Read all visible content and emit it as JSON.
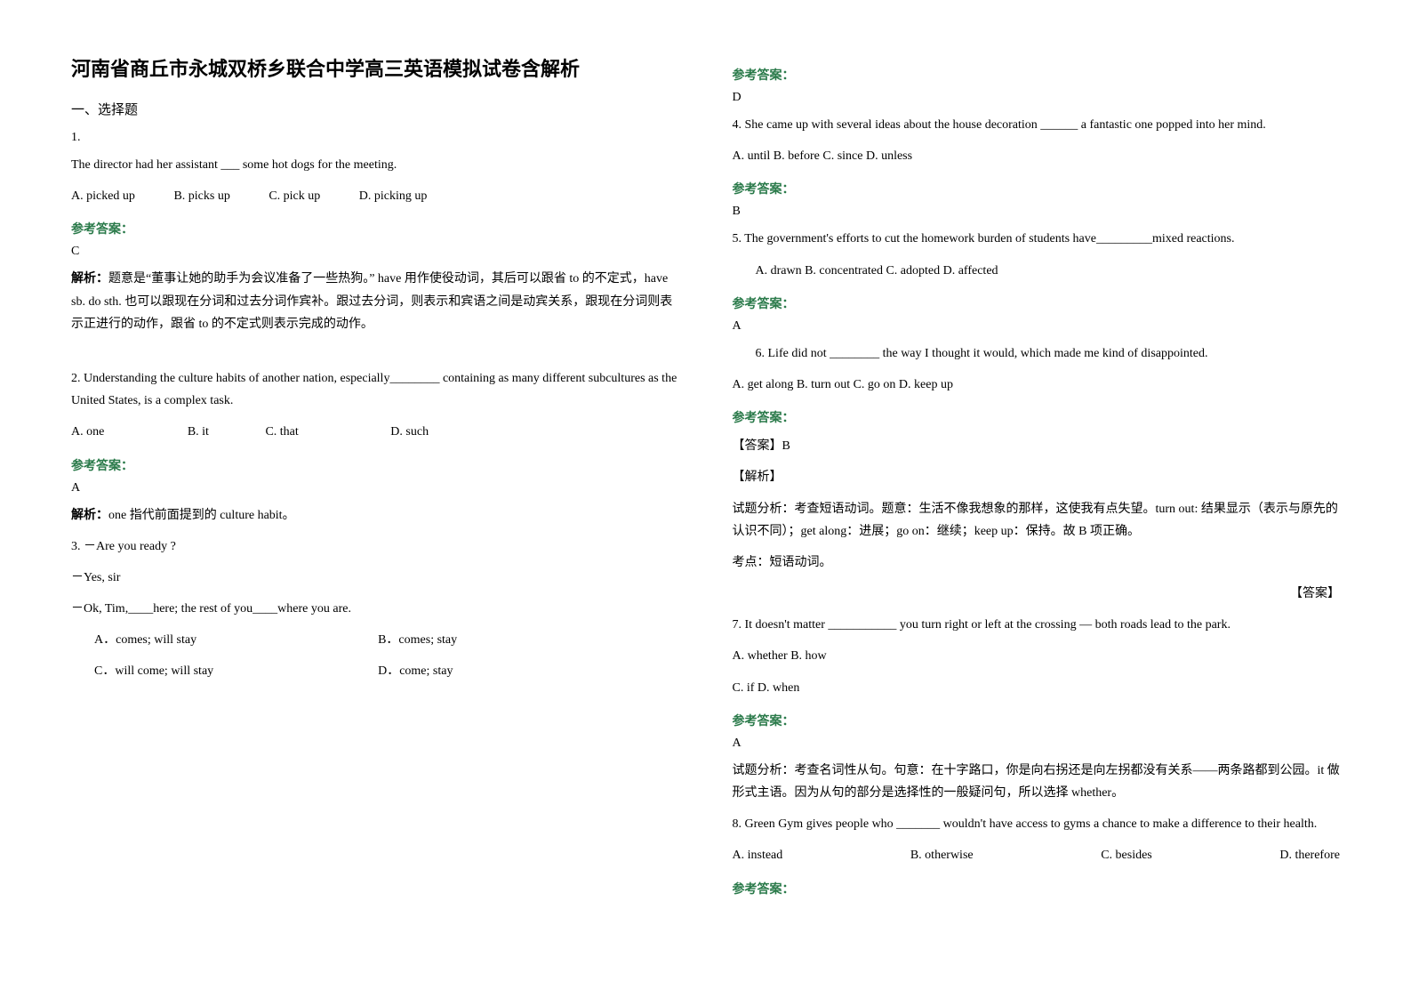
{
  "title": "河南省商丘市永城双桥乡联合中学高三英语模拟试卷含解析",
  "section1": "一、选择题",
  "ans_label": "参考答案：",
  "expl_label": "解析：",
  "q1": {
    "num": "1.",
    "stem": "The director had her assistant ___ some hot dogs for the meeting.",
    "opts": [
      "A. picked up",
      "B. picks up",
      "C. pick up",
      "D. picking up"
    ],
    "ans": "C",
    "expl": "题意是“董事让她的助手为会议准备了一些热狗。” have 用作使役动词，其后可以跟省 to 的不定式，have sb. do sth. 也可以跟现在分词和过去分词作宾补。跟过去分词，则表示和宾语之间是动宾关系，跟现在分词则表示正进行的动作，跟省 to 的不定式则表示完成的动作。"
  },
  "q2": {
    "stem": "2. Understanding the culture habits of another nation, especially________ containing as many different subcultures as the United States, is a complex task.",
    "opts": [
      "A. one",
      "B. it",
      "C. that",
      "D. such"
    ],
    "ans": "A",
    "expl": "one 指代前面提到的 culture habit。"
  },
  "q3": {
    "l1": "3. －Are you ready ?",
    "l2": "－Yes, sir",
    "l3": "－Ok, Tim,____here; the rest of you____where you are.",
    "opts": [
      "A．comes; will stay",
      "B．comes; stay",
      "C．will come; will stay",
      "D．come; stay"
    ],
    "ans": "D"
  },
  "q4": {
    "stem": "4. She came up with several ideas about the house decoration ______ a fantastic one popped into her mind.",
    "opts": "A. until    B. before    C. since    D. unless",
    "ans": "B"
  },
  "q5": {
    "stem": "5. The government's efforts to cut the homework burden of students have_________mixed reactions.",
    "opts": "A. drawn          B. concentrated        C. adopted          D. affected",
    "ans": "A"
  },
  "q6": {
    "stem": "6. Life did not ________ the way I thought it would, which made me kind of disappointed.",
    "opts": "A. get along     B. turn out       C. go on        D. keep up",
    "ans_head": "【答案】B",
    "expl_head": "【解析】",
    "expl1": "试题分析：考查短语动词。题意：生活不像我想象的那样，这使我有点失望。turn out: 结果显示（表示与原先的认识不同）；get along：进展；go on：继续；keep up：保持。故 B 项正确。",
    "expl2": "考点：短语动词。",
    "right": "【答案】"
  },
  "q7": {
    "stem": "7. It doesn't matter ___________ you turn right or left at the crossing — both roads lead to the park.",
    "opts1": "A. whether      B. how",
    "opts2": "C. if           D. when",
    "ans": "A",
    "expl": "试题分析：考查名词性从句。句意：在十字路口，你是向右拐还是向左拐都没有关系——两条路都到公园。it 做形式主语。因为从句的部分是选择性的一般疑问句，所以选择 whether。"
  },
  "q8": {
    "stem": "8. Green Gym gives people who _______ wouldn't have access to gyms a chance to make a difference to their health.",
    "opts": [
      "A. instead",
      "B. otherwise",
      "C. besides",
      "D. therefore"
    ]
  }
}
